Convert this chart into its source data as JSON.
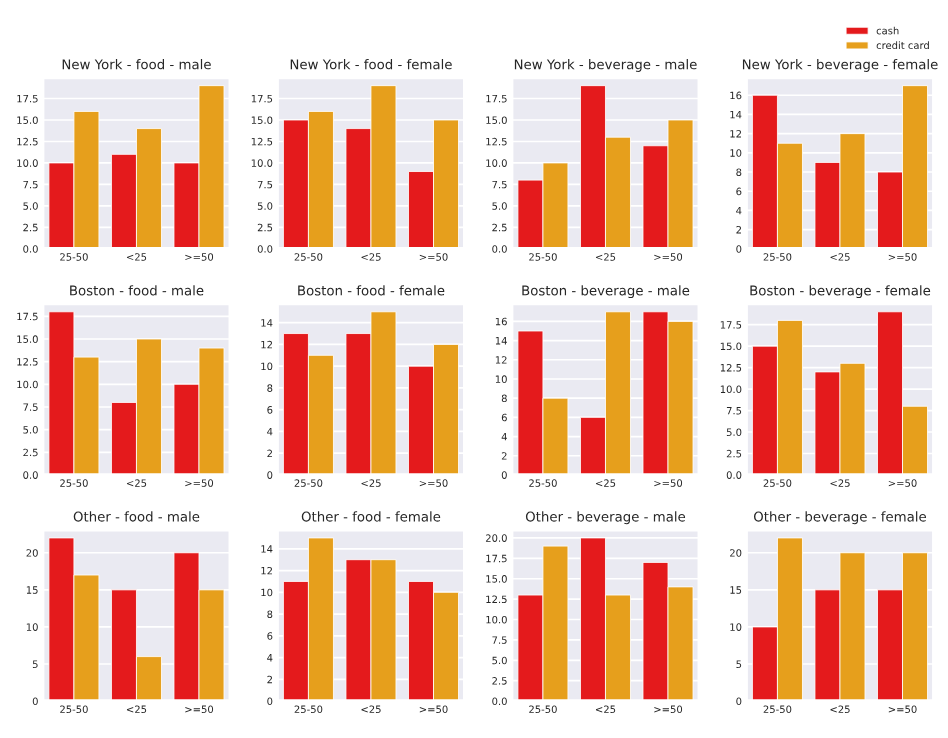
{
  "chart_data": [
    {
      "type": "bar",
      "title": "New York - food - male",
      "categories": [
        "25-50",
        "<25",
        ">=50"
      ],
      "ylim": [
        0,
        19.95
      ],
      "yticks": [
        {
          "value": 0,
          "label": "0.0"
        },
        2.5,
        {
          "value": 5,
          "label": "5.0"
        },
        7.5,
        {
          "value": 10,
          "label": "10.0"
        },
        12.5,
        {
          "value": 15,
          "label": "15.0"
        },
        17.5
      ],
      "grid": "y",
      "series": [
        {
          "color": "#e41a1c",
          "values": [
            10,
            11,
            10
          ]
        },
        {
          "color": "#e69f1c",
          "values": [
            16,
            14,
            19
          ]
        }
      ]
    },
    {
      "type": "bar",
      "title": "New York - food - female",
      "categories": [
        "25-50",
        "<25",
        ">=50"
      ],
      "ylim": [
        0,
        19.95
      ],
      "yticks": [
        {
          "value": 0,
          "label": "0.0"
        },
        2.5,
        {
          "value": 5,
          "label": "5.0"
        },
        7.5,
        {
          "value": 10,
          "label": "10.0"
        },
        12.5,
        {
          "value": 15,
          "label": "15.0"
        },
        17.5
      ],
      "grid": "y",
      "series": [
        {
          "color": "#e41a1c",
          "values": [
            15,
            14,
            9
          ]
        },
        {
          "color": "#e69f1c",
          "values": [
            16,
            19,
            15
          ]
        }
      ]
    },
    {
      "type": "bar",
      "title": "New York - beverage - male",
      "categories": [
        "25-50",
        "<25",
        ">=50"
      ],
      "ylim": [
        0,
        19.95
      ],
      "yticks": [
        {
          "value": 0,
          "label": "0.0"
        },
        2.5,
        {
          "value": 5,
          "label": "5.0"
        },
        7.5,
        {
          "value": 10,
          "label": "10.0"
        },
        12.5,
        {
          "value": 15,
          "label": "15.0"
        },
        17.5
      ],
      "grid": "y",
      "series": [
        {
          "color": "#e41a1c",
          "values": [
            8,
            19,
            12
          ]
        },
        {
          "color": "#e69f1c",
          "values": [
            10,
            13,
            15
          ]
        }
      ]
    },
    {
      "type": "bar",
      "title": "New York - beverage - female",
      "categories": [
        "25-50",
        "<25",
        ">=50"
      ],
      "ylim": [
        0,
        17.85
      ],
      "yticks": [
        0,
        2,
        4,
        6,
        8,
        10,
        12,
        14,
        16
      ],
      "grid": "y",
      "legend": "top right",
      "series": [
        {
          "name": "cash",
          "color": "#e41a1c",
          "values": [
            16,
            9,
            8
          ]
        },
        {
          "name": "credit card",
          "color": "#e69f1c",
          "values": [
            11,
            12,
            17
          ]
        }
      ]
    },
    {
      "type": "bar",
      "title": "Boston - food - male",
      "categories": [
        "25-50",
        "<25",
        ">=50"
      ],
      "ylim": [
        0,
        18.9
      ],
      "yticks": [
        {
          "value": 0,
          "label": "0.0"
        },
        2.5,
        {
          "value": 5,
          "label": "5.0"
        },
        7.5,
        {
          "value": 10,
          "label": "10.0"
        },
        12.5,
        {
          "value": 15,
          "label": "15.0"
        },
        17.5
      ],
      "grid": "y",
      "series": [
        {
          "color": "#e41a1c",
          "values": [
            18,
            8,
            10
          ]
        },
        {
          "color": "#e69f1c",
          "values": [
            13,
            15,
            14
          ]
        }
      ]
    },
    {
      "type": "bar",
      "title": "Boston - food - female",
      "categories": [
        "25-50",
        "<25",
        ">=50"
      ],
      "ylim": [
        0,
        15.75
      ],
      "yticks": [
        0,
        2,
        4,
        6,
        8,
        10,
        12,
        14
      ],
      "grid": "y",
      "series": [
        {
          "color": "#e41a1c",
          "values": [
            13,
            13,
            10
          ]
        },
        {
          "color": "#e69f1c",
          "values": [
            11,
            15,
            12
          ]
        }
      ]
    },
    {
      "type": "bar",
      "title": "Boston - beverage - male",
      "categories": [
        "25-50",
        "<25",
        ">=50"
      ],
      "ylim": [
        0,
        17.85
      ],
      "yticks": [
        0,
        2,
        4,
        6,
        8,
        10,
        12,
        14,
        16
      ],
      "grid": "y",
      "series": [
        {
          "color": "#e41a1c",
          "values": [
            15,
            6,
            17
          ]
        },
        {
          "color": "#e69f1c",
          "values": [
            8,
            17,
            16
          ]
        }
      ]
    },
    {
      "type": "bar",
      "title": "Boston - beverage - female",
      "categories": [
        "25-50",
        "<25",
        ">=50"
      ],
      "ylim": [
        0,
        19.95
      ],
      "yticks": [
        {
          "value": 0,
          "label": "0.0"
        },
        2.5,
        {
          "value": 5,
          "label": "5.0"
        },
        7.5,
        {
          "value": 10,
          "label": "10.0"
        },
        12.5,
        {
          "value": 15,
          "label": "15.0"
        },
        17.5
      ],
      "grid": "y",
      "series": [
        {
          "color": "#e41a1c",
          "values": [
            15,
            12,
            19
          ]
        },
        {
          "color": "#e69f1c",
          "values": [
            18,
            13,
            8
          ]
        }
      ]
    },
    {
      "type": "bar",
      "title": "Other - food - male",
      "categories": [
        "25-50",
        "<25",
        ">=50"
      ],
      "ylim": [
        0,
        23.1
      ],
      "yticks": [
        0,
        5,
        10,
        15,
        20
      ],
      "grid": "y",
      "series": [
        {
          "color": "#e41a1c",
          "values": [
            22,
            15,
            20
          ]
        },
        {
          "color": "#e69f1c",
          "values": [
            17,
            6,
            15
          ]
        }
      ]
    },
    {
      "type": "bar",
      "title": "Other - food - female",
      "categories": [
        "25-50",
        "<25",
        ">=50"
      ],
      "ylim": [
        0,
        15.75
      ],
      "yticks": [
        0,
        2,
        4,
        6,
        8,
        10,
        12,
        14
      ],
      "grid": "y",
      "series": [
        {
          "color": "#e41a1c",
          "values": [
            11,
            13,
            11
          ]
        },
        {
          "color": "#e69f1c",
          "values": [
            15,
            13,
            10
          ]
        }
      ]
    },
    {
      "type": "bar",
      "title": "Other - beverage - male",
      "categories": [
        "25-50",
        "<25",
        ">=50"
      ],
      "ylim": [
        0,
        21
      ],
      "yticks": [
        {
          "value": 0,
          "label": "0.0"
        },
        2.5,
        {
          "value": 5,
          "label": "5.0"
        },
        7.5,
        {
          "value": 10,
          "label": "10.0"
        },
        12.5,
        {
          "value": 15,
          "label": "15.0"
        },
        17.5,
        {
          "value": 20,
          "label": "20.0"
        }
      ],
      "grid": "y",
      "series": [
        {
          "color": "#e41a1c",
          "values": [
            13,
            20,
            17
          ]
        },
        {
          "color": "#e69f1c",
          "values": [
            19,
            13,
            14
          ]
        }
      ]
    },
    {
      "type": "bar",
      "title": "Other - beverage - female",
      "categories": [
        "25-50",
        "<25",
        ">=50"
      ],
      "ylim": [
        0,
        23.1
      ],
      "yticks": [
        0,
        5,
        10,
        15,
        20
      ],
      "grid": "y",
      "series": [
        {
          "color": "#e41a1c",
          "values": [
            10,
            15,
            15
          ]
        },
        {
          "color": "#e69f1c",
          "values": [
            22,
            20,
            20
          ]
        }
      ]
    }
  ]
}
